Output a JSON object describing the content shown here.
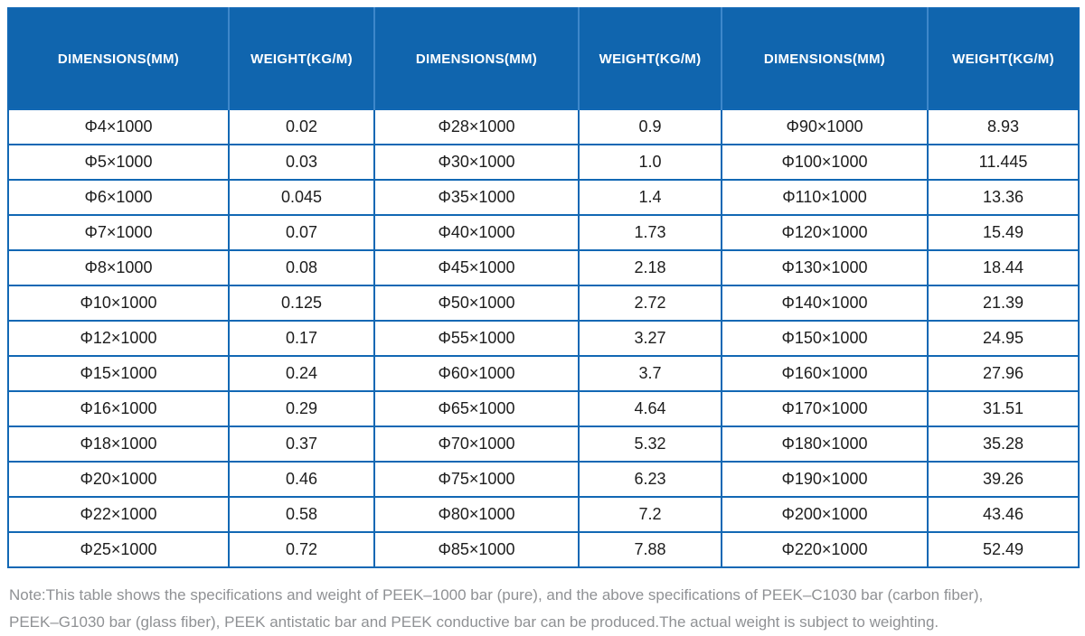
{
  "table": {
    "headers": [
      "DIMENSIONS(MM)",
      "WEIGHT(KG/M)",
      "DIMENSIONS(MM)",
      "WEIGHT(KG/M)",
      "DIMENSIONS(MM)",
      "WEIGHT(KG/M)"
    ],
    "rows": [
      [
        "Φ4×1000",
        "0.02",
        "Φ28×1000",
        "0.9",
        "Φ90×1000",
        "8.93"
      ],
      [
        "Φ5×1000",
        "0.03",
        "Φ30×1000",
        "1.0",
        "Φ100×1000",
        "11.445"
      ],
      [
        "Φ6×1000",
        "0.045",
        "Φ35×1000",
        "1.4",
        "Φ110×1000",
        "13.36"
      ],
      [
        "Φ7×1000",
        "0.07",
        "Φ40×1000",
        "1.73",
        "Φ120×1000",
        "15.49"
      ],
      [
        "Φ8×1000",
        "0.08",
        "Φ45×1000",
        "2.18",
        "Φ130×1000",
        "18.44"
      ],
      [
        "Φ10×1000",
        "0.125",
        "Φ50×1000",
        "2.72",
        "Φ140×1000",
        "21.39"
      ],
      [
        "Φ12×1000",
        "0.17",
        "Φ55×1000",
        "3.27",
        "Φ150×1000",
        "24.95"
      ],
      [
        "Φ15×1000",
        "0.24",
        "Φ60×1000",
        "3.7",
        "Φ160×1000",
        "27.96"
      ],
      [
        "Φ16×1000",
        "0.29",
        "Φ65×1000",
        "4.64",
        "Φ170×1000",
        "31.51"
      ],
      [
        "Φ18×1000",
        "0.37",
        "Φ70×1000",
        "5.32",
        "Φ180×1000",
        "35.28"
      ],
      [
        "Φ20×1000",
        "0.46",
        "Φ75×1000",
        "6.23",
        "Φ190×1000",
        "39.26"
      ],
      [
        "Φ22×1000",
        "0.58",
        "Φ80×1000",
        "7.2",
        "Φ200×1000",
        "43.46"
      ],
      [
        "Φ25×1000",
        "0.72",
        "Φ85×1000",
        "7.88",
        "Φ220×1000",
        "52.49"
      ]
    ]
  },
  "note": {
    "lines": [
      "Note:This table shows the specifications and weight of PEEK–1000 bar (pure), and the above specifications of PEEK–C1030 bar (carbon fiber),",
      "PEEK–G1030 bar (glass fiber), PEEK antistatic bar and PEEK conductive bar can be produced.The actual weight is subject to weighting."
    ]
  },
  "colors": {
    "header_bg": "#1065ae",
    "header_divider": "#3e87ca",
    "grid_border": "#1268b4",
    "cell_text": "#1d1d1d",
    "note_text": "#8f9194"
  }
}
